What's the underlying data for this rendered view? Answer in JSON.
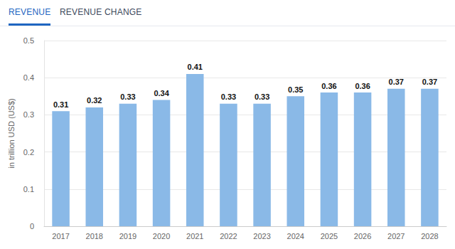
{
  "chart_data": {
    "type": "bar",
    "annotations": [
      "REVENUE",
      "REVENUE CHANGE"
    ],
    "y_label": "in trillion USD (US$)",
    "categories": [
      "2017",
      "2018",
      "2019",
      "2020",
      "2021",
      "2022",
      "2023",
      "2024",
      "2025",
      "2026",
      "2027",
      "2028"
    ],
    "values": [
      0.31,
      0.32,
      0.33,
      0.34,
      0.41,
      0.33,
      0.33,
      0.35,
      0.36,
      0.36,
      0.37,
      0.37
    ],
    "color": "#8ab9e7",
    "ylim": [
      0,
      0.5
    ],
    "yticks": [
      0,
      0.1,
      0.2,
      0.3,
      0.4,
      0.5
    ],
    "grid": true,
    "data_labels": true
  }
}
